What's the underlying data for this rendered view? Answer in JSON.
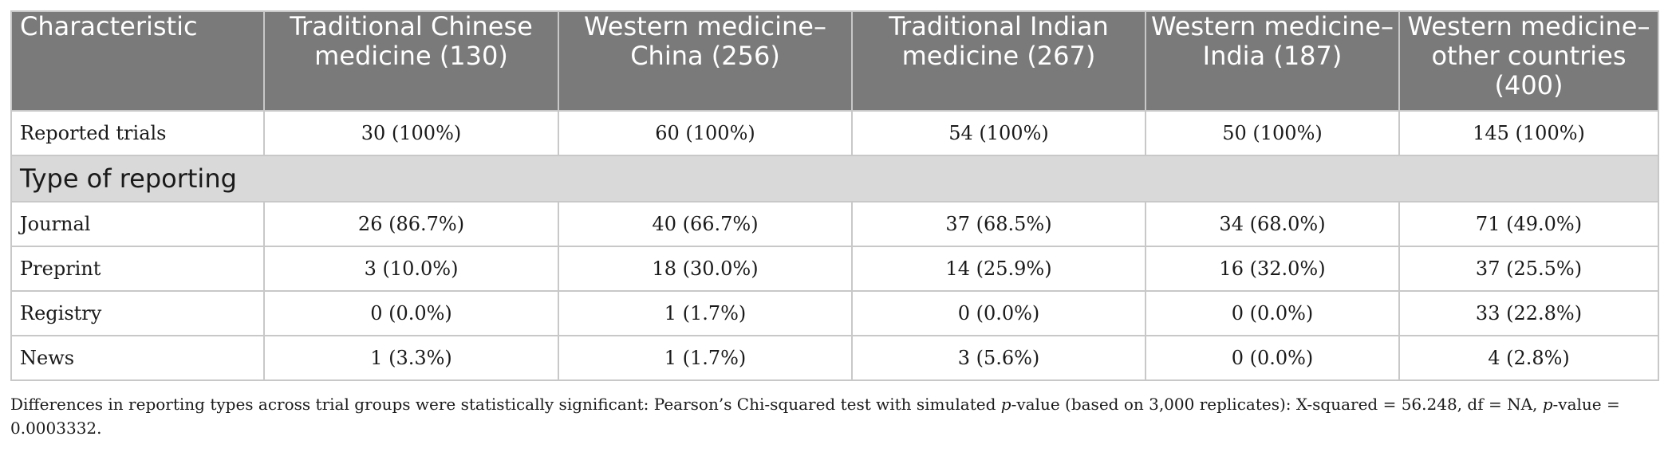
{
  "table": {
    "headers": [
      "Characteristic",
      "Traditional Chinese medicine (130)",
      "Western medicine–China (256)",
      "Traditional Indian medicine (267)",
      "Western medicine–India (187)",
      "Western medicine–other countries (400)"
    ],
    "reported_row": {
      "label": "Reported trials",
      "cells": [
        "30 (100%)",
        "60 (100%)",
        "54 (100%)",
        "50 (100%)",
        "145 (100%)"
      ]
    },
    "section_label": "Type of reporting",
    "rows": [
      {
        "label": "Journal",
        "cells": [
          "26 (86.7%)",
          "40 (66.7%)",
          "37 (68.5%)",
          "34 (68.0%)",
          "71 (49.0%)"
        ]
      },
      {
        "label": "Preprint",
        "cells": [
          "3 (10.0%)",
          "18 (30.0%)",
          "14 (25.9%)",
          "16 (32.0%)",
          "37 (25.5%)"
        ]
      },
      {
        "label": "Registry",
        "cells": [
          "0 (0.0%)",
          "1 (1.7%)",
          "0 (0.0%)",
          "0 (0.0%)",
          "33 (22.8%)"
        ]
      },
      {
        "label": "News",
        "cells": [
          "1 (3.3%)",
          "1 (1.7%)",
          "3 (5.6%)",
          "0 (0.0%)",
          "4 (2.8%)"
        ]
      }
    ]
  },
  "footnote": {
    "part1": "Differences in reporting types across trial groups were statistically significant: Pearson’s Chi-squared test with simulated ",
    "p1": "p",
    "part2": "-value (based on 3,000 replicates): X-squared = 56.248, df = NA, ",
    "p2": "p",
    "part3": "-value = 0.0003332."
  },
  "colors": {
    "header_bg": "#7a7a7a",
    "section_bg": "#d9d9d9",
    "border": "#c8c8c8"
  }
}
